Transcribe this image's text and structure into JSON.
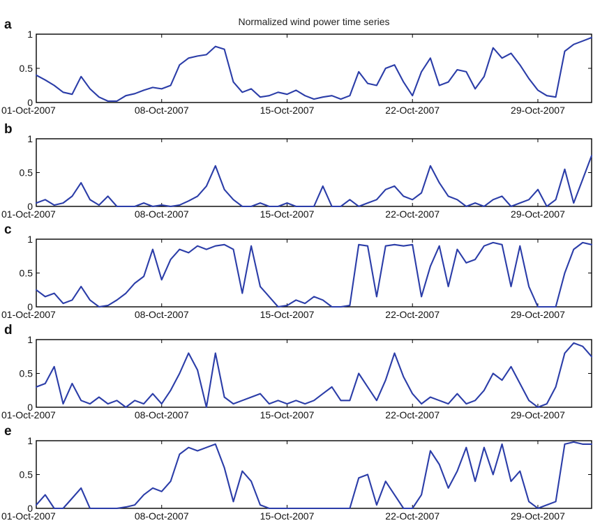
{
  "title": "Normalized wind power time series",
  "colors": {
    "line": "#2b3da8",
    "axis": "#000000"
  },
  "chart_data": [
    {
      "type": "line",
      "panel_label": "a",
      "xlim": [
        "2007-10-01",
        "2007-11-01"
      ],
      "ylim": [
        0,
        1
      ],
      "yticks": [
        0,
        0.5,
        1
      ],
      "ytick_labels": [
        "0",
        "0.5",
        "1"
      ],
      "xticks": [
        "2007-10-01",
        "2007-10-08",
        "2007-10-15",
        "2007-10-22",
        "2007-10-29"
      ],
      "xtick_labels": [
        "01-Oct-2007",
        "08-Oct-2007",
        "15-Oct-2007",
        "22-Oct-2007",
        "29-Oct-2007"
      ],
      "grid": false,
      "x": [
        "2007-10-01 00:00",
        "2007-10-01 12:00",
        "2007-10-02 00:00",
        "2007-10-02 12:00",
        "2007-10-03 00:00",
        "2007-10-03 12:00",
        "2007-10-04 00:00",
        "2007-10-04 12:00",
        "2007-10-05 00:00",
        "2007-10-05 12:00",
        "2007-10-06 00:00",
        "2007-10-06 12:00",
        "2007-10-07 00:00",
        "2007-10-07 12:00",
        "2007-10-08 00:00",
        "2007-10-08 12:00",
        "2007-10-09 00:00",
        "2007-10-09 12:00",
        "2007-10-10 00:00",
        "2007-10-10 12:00",
        "2007-10-11 00:00",
        "2007-10-11 12:00",
        "2007-10-12 00:00",
        "2007-10-12 12:00",
        "2007-10-13 00:00",
        "2007-10-13 12:00",
        "2007-10-14 00:00",
        "2007-10-14 12:00",
        "2007-10-15 00:00",
        "2007-10-15 12:00",
        "2007-10-16 00:00",
        "2007-10-16 12:00",
        "2007-10-17 00:00",
        "2007-10-17 12:00",
        "2007-10-18 00:00",
        "2007-10-18 12:00",
        "2007-10-19 00:00",
        "2007-10-19 12:00",
        "2007-10-20 00:00",
        "2007-10-20 12:00",
        "2007-10-21 00:00",
        "2007-10-21 12:00",
        "2007-10-22 00:00",
        "2007-10-22 12:00",
        "2007-10-23 00:00",
        "2007-10-23 12:00",
        "2007-10-24 00:00",
        "2007-10-24 12:00",
        "2007-10-25 00:00",
        "2007-10-25 12:00",
        "2007-10-26 00:00",
        "2007-10-26 12:00",
        "2007-10-27 00:00",
        "2007-10-27 12:00",
        "2007-10-28 00:00",
        "2007-10-28 12:00",
        "2007-10-29 00:00",
        "2007-10-29 12:00",
        "2007-10-30 00:00",
        "2007-10-30 12:00",
        "2007-10-31 00:00",
        "2007-10-31 12:00",
        "2007-11-01 00:00"
      ],
      "y": [
        0.4,
        0.33,
        0.25,
        0.15,
        0.12,
        0.38,
        0.2,
        0.08,
        0.02,
        0.02,
        0.1,
        0.13,
        0.18,
        0.22,
        0.2,
        0.25,
        0.55,
        0.65,
        0.68,
        0.7,
        0.82,
        0.78,
        0.3,
        0.15,
        0.2,
        0.08,
        0.1,
        0.15,
        0.12,
        0.18,
        0.1,
        0.05,
        0.08,
        0.1,
        0.05,
        0.1,
        0.45,
        0.28,
        0.25,
        0.5,
        0.55,
        0.3,
        0.1,
        0.45,
        0.65,
        0.25,
        0.3,
        0.48,
        0.45,
        0.2,
        0.38,
        0.8,
        0.65,
        0.72,
        0.55,
        0.35,
        0.18,
        0.1,
        0.08,
        0.75,
        0.85,
        0.9,
        0.95
      ]
    },
    {
      "type": "line",
      "panel_label": "b",
      "xlim": [
        "2007-10-01",
        "2007-11-01"
      ],
      "ylim": [
        0,
        1
      ],
      "yticks": [
        0,
        0.5,
        1
      ],
      "ytick_labels": [
        "0",
        "0.5",
        "1"
      ],
      "xticks": [
        "2007-10-01",
        "2007-10-08",
        "2007-10-15",
        "2007-10-22",
        "2007-10-29"
      ],
      "xtick_labels": [
        "01-Oct-2007",
        "08-Oct-2007",
        "15-Oct-2007",
        "22-Oct-2007",
        "29-Oct-2007"
      ],
      "grid": false,
      "x": [
        "2007-10-01 00:00",
        "2007-10-01 12:00",
        "2007-10-02 00:00",
        "2007-10-02 12:00",
        "2007-10-03 00:00",
        "2007-10-03 12:00",
        "2007-10-04 00:00",
        "2007-10-04 12:00",
        "2007-10-05 00:00",
        "2007-10-05 12:00",
        "2007-10-06 00:00",
        "2007-10-06 12:00",
        "2007-10-07 00:00",
        "2007-10-07 12:00",
        "2007-10-08 00:00",
        "2007-10-08 12:00",
        "2007-10-09 00:00",
        "2007-10-09 12:00",
        "2007-10-10 00:00",
        "2007-10-10 12:00",
        "2007-10-11 00:00",
        "2007-10-11 12:00",
        "2007-10-12 00:00",
        "2007-10-12 12:00",
        "2007-10-13 00:00",
        "2007-10-13 12:00",
        "2007-10-14 00:00",
        "2007-10-14 12:00",
        "2007-10-15 00:00",
        "2007-10-15 12:00",
        "2007-10-16 00:00",
        "2007-10-16 12:00",
        "2007-10-17 00:00",
        "2007-10-17 12:00",
        "2007-10-18 00:00",
        "2007-10-18 12:00",
        "2007-10-19 00:00",
        "2007-10-19 12:00",
        "2007-10-20 00:00",
        "2007-10-20 12:00",
        "2007-10-21 00:00",
        "2007-10-21 12:00",
        "2007-10-22 00:00",
        "2007-10-22 12:00",
        "2007-10-23 00:00",
        "2007-10-23 12:00",
        "2007-10-24 00:00",
        "2007-10-24 12:00",
        "2007-10-25 00:00",
        "2007-10-25 12:00",
        "2007-10-26 00:00",
        "2007-10-26 12:00",
        "2007-10-27 00:00",
        "2007-10-27 12:00",
        "2007-10-28 00:00",
        "2007-10-28 12:00",
        "2007-10-29 00:00",
        "2007-10-29 12:00",
        "2007-10-30 00:00",
        "2007-10-30 12:00",
        "2007-10-31 00:00",
        "2007-10-31 12:00",
        "2007-11-01 00:00"
      ],
      "y": [
        0.05,
        0.1,
        0.02,
        0.05,
        0.15,
        0.35,
        0.1,
        0.02,
        0.15,
        0.0,
        0.0,
        0.0,
        0.05,
        0.0,
        0.02,
        0.0,
        0.02,
        0.08,
        0.15,
        0.3,
        0.6,
        0.25,
        0.1,
        0.0,
        0.0,
        0.05,
        0.0,
        0.0,
        0.05,
        0.0,
        0.0,
        0.0,
        0.3,
        0.0,
        0.0,
        0.1,
        0.0,
        0.05,
        0.1,
        0.25,
        0.3,
        0.15,
        0.1,
        0.2,
        0.6,
        0.35,
        0.15,
        0.1,
        0.0,
        0.05,
        0.0,
        0.1,
        0.15,
        0.0,
        0.05,
        0.1,
        0.25,
        0.0,
        0.1,
        0.55,
        0.05,
        0.4,
        0.75
      ]
    },
    {
      "type": "line",
      "panel_label": "c",
      "xlim": [
        "2007-10-01",
        "2007-11-01"
      ],
      "ylim": [
        0,
        1
      ],
      "yticks": [
        0,
        0.5,
        1
      ],
      "ytick_labels": [
        "0",
        "0.5",
        "1"
      ],
      "xticks": [
        "2007-10-01",
        "2007-10-08",
        "2007-10-15",
        "2007-10-22",
        "2007-10-29"
      ],
      "xtick_labels": [
        "01-Oct-2007",
        "08-Oct-2007",
        "15-Oct-2007",
        "22-Oct-2007",
        "29-Oct-2007"
      ],
      "grid": false,
      "x": [
        "2007-10-01 00:00",
        "2007-10-01 12:00",
        "2007-10-02 00:00",
        "2007-10-02 12:00",
        "2007-10-03 00:00",
        "2007-10-03 12:00",
        "2007-10-04 00:00",
        "2007-10-04 12:00",
        "2007-10-05 00:00",
        "2007-10-05 12:00",
        "2007-10-06 00:00",
        "2007-10-06 12:00",
        "2007-10-07 00:00",
        "2007-10-07 12:00",
        "2007-10-08 00:00",
        "2007-10-08 12:00",
        "2007-10-09 00:00",
        "2007-10-09 12:00",
        "2007-10-10 00:00",
        "2007-10-10 12:00",
        "2007-10-11 00:00",
        "2007-10-11 12:00",
        "2007-10-12 00:00",
        "2007-10-12 12:00",
        "2007-10-13 00:00",
        "2007-10-13 12:00",
        "2007-10-14 00:00",
        "2007-10-14 12:00",
        "2007-10-15 00:00",
        "2007-10-15 12:00",
        "2007-10-16 00:00",
        "2007-10-16 12:00",
        "2007-10-17 00:00",
        "2007-10-17 12:00",
        "2007-10-18 00:00",
        "2007-10-18 12:00",
        "2007-10-19 00:00",
        "2007-10-19 12:00",
        "2007-10-20 00:00",
        "2007-10-20 12:00",
        "2007-10-21 00:00",
        "2007-10-21 12:00",
        "2007-10-22 00:00",
        "2007-10-22 12:00",
        "2007-10-23 00:00",
        "2007-10-23 12:00",
        "2007-10-24 00:00",
        "2007-10-24 12:00",
        "2007-10-25 00:00",
        "2007-10-25 12:00",
        "2007-10-26 00:00",
        "2007-10-26 12:00",
        "2007-10-27 00:00",
        "2007-10-27 12:00",
        "2007-10-28 00:00",
        "2007-10-28 12:00",
        "2007-10-29 00:00",
        "2007-10-29 12:00",
        "2007-10-30 00:00",
        "2007-10-30 12:00",
        "2007-10-31 00:00",
        "2007-10-31 12:00",
        "2007-11-01 00:00"
      ],
      "y": [
        0.25,
        0.15,
        0.2,
        0.05,
        0.1,
        0.3,
        0.1,
        0.0,
        0.02,
        0.1,
        0.2,
        0.35,
        0.45,
        0.85,
        0.4,
        0.7,
        0.85,
        0.8,
        0.9,
        0.85,
        0.9,
        0.92,
        0.85,
        0.2,
        0.9,
        0.3,
        0.15,
        0.0,
        0.02,
        0.1,
        0.05,
        0.15,
        0.1,
        0.0,
        0.0,
        0.02,
        0.92,
        0.9,
        0.15,
        0.9,
        0.92,
        0.9,
        0.92,
        0.15,
        0.6,
        0.9,
        0.3,
        0.85,
        0.65,
        0.7,
        0.9,
        0.95,
        0.92,
        0.3,
        0.9,
        0.3,
        0.0,
        0.0,
        0.0,
        0.5,
        0.85,
        0.95,
        0.92
      ]
    },
    {
      "type": "line",
      "panel_label": "d",
      "xlim": [
        "2007-10-01",
        "2007-11-01"
      ],
      "ylim": [
        0,
        1
      ],
      "yticks": [
        0,
        0.5,
        1
      ],
      "ytick_labels": [
        "0",
        "0.5",
        "1"
      ],
      "xticks": [
        "2007-10-01",
        "2007-10-08",
        "2007-10-15",
        "2007-10-22",
        "2007-10-29"
      ],
      "xtick_labels": [
        "01-Oct-2007",
        "08-Oct-2007",
        "15-Oct-2007",
        "22-Oct-2007",
        "29-Oct-2007"
      ],
      "grid": false,
      "x": [
        "2007-10-01 00:00",
        "2007-10-01 12:00",
        "2007-10-02 00:00",
        "2007-10-02 12:00",
        "2007-10-03 00:00",
        "2007-10-03 12:00",
        "2007-10-04 00:00",
        "2007-10-04 12:00",
        "2007-10-05 00:00",
        "2007-10-05 12:00",
        "2007-10-06 00:00",
        "2007-10-06 12:00",
        "2007-10-07 00:00",
        "2007-10-07 12:00",
        "2007-10-08 00:00",
        "2007-10-08 12:00",
        "2007-10-09 00:00",
        "2007-10-09 12:00",
        "2007-10-10 00:00",
        "2007-10-10 12:00",
        "2007-10-11 00:00",
        "2007-10-11 12:00",
        "2007-10-12 00:00",
        "2007-10-12 12:00",
        "2007-10-13 00:00",
        "2007-10-13 12:00",
        "2007-10-14 00:00",
        "2007-10-14 12:00",
        "2007-10-15 00:00",
        "2007-10-15 12:00",
        "2007-10-16 00:00",
        "2007-10-16 12:00",
        "2007-10-17 00:00",
        "2007-10-17 12:00",
        "2007-10-18 00:00",
        "2007-10-18 12:00",
        "2007-10-19 00:00",
        "2007-10-19 12:00",
        "2007-10-20 00:00",
        "2007-10-20 12:00",
        "2007-10-21 00:00",
        "2007-10-21 12:00",
        "2007-10-22 00:00",
        "2007-10-22 12:00",
        "2007-10-23 00:00",
        "2007-10-23 12:00",
        "2007-10-24 00:00",
        "2007-10-24 12:00",
        "2007-10-25 00:00",
        "2007-10-25 12:00",
        "2007-10-26 00:00",
        "2007-10-26 12:00",
        "2007-10-27 00:00",
        "2007-10-27 12:00",
        "2007-10-28 00:00",
        "2007-10-28 12:00",
        "2007-10-29 00:00",
        "2007-10-29 12:00",
        "2007-10-30 00:00",
        "2007-10-30 12:00",
        "2007-10-31 00:00",
        "2007-10-31 12:00",
        "2007-11-01 00:00"
      ],
      "y": [
        0.3,
        0.35,
        0.6,
        0.05,
        0.35,
        0.1,
        0.05,
        0.15,
        0.05,
        0.1,
        0.0,
        0.1,
        0.05,
        0.2,
        0.05,
        0.25,
        0.5,
        0.8,
        0.55,
        0.0,
        0.8,
        0.15,
        0.05,
        0.1,
        0.15,
        0.2,
        0.05,
        0.1,
        0.05,
        0.1,
        0.05,
        0.1,
        0.2,
        0.3,
        0.1,
        0.1,
        0.5,
        0.3,
        0.1,
        0.4,
        0.8,
        0.45,
        0.2,
        0.05,
        0.15,
        0.1,
        0.05,
        0.2,
        0.05,
        0.1,
        0.25,
        0.5,
        0.4,
        0.6,
        0.35,
        0.1,
        0.0,
        0.05,
        0.3,
        0.8,
        0.95,
        0.9,
        0.75
      ]
    },
    {
      "type": "line",
      "panel_label": "e",
      "xlim": [
        "2007-10-01",
        "2007-11-01"
      ],
      "ylim": [
        0,
        1
      ],
      "yticks": [
        0,
        0.5,
        1
      ],
      "ytick_labels": [
        "0",
        "0.5",
        "1"
      ],
      "xticks": [
        "2007-10-01",
        "2007-10-08",
        "2007-10-15",
        "2007-10-22",
        "2007-10-29"
      ],
      "xtick_labels": [
        "01-Oct-2007",
        "08-Oct-2007",
        "15-Oct-2007",
        "22-Oct-2007",
        "29-Oct-2007"
      ],
      "grid": false,
      "x": [
        "2007-10-01 00:00",
        "2007-10-01 12:00",
        "2007-10-02 00:00",
        "2007-10-02 12:00",
        "2007-10-03 00:00",
        "2007-10-03 12:00",
        "2007-10-04 00:00",
        "2007-10-04 12:00",
        "2007-10-05 00:00",
        "2007-10-05 12:00",
        "2007-10-06 00:00",
        "2007-10-06 12:00",
        "2007-10-07 00:00",
        "2007-10-07 12:00",
        "2007-10-08 00:00",
        "2007-10-08 12:00",
        "2007-10-09 00:00",
        "2007-10-09 12:00",
        "2007-10-10 00:00",
        "2007-10-10 12:00",
        "2007-10-11 00:00",
        "2007-10-11 12:00",
        "2007-10-12 00:00",
        "2007-10-12 12:00",
        "2007-10-13 00:00",
        "2007-10-13 12:00",
        "2007-10-14 00:00",
        "2007-10-14 12:00",
        "2007-10-15 00:00",
        "2007-10-15 12:00",
        "2007-10-16 00:00",
        "2007-10-16 12:00",
        "2007-10-17 00:00",
        "2007-10-17 12:00",
        "2007-10-18 00:00",
        "2007-10-18 12:00",
        "2007-10-19 00:00",
        "2007-10-19 12:00",
        "2007-10-20 00:00",
        "2007-10-20 12:00",
        "2007-10-21 00:00",
        "2007-10-21 12:00",
        "2007-10-22 00:00",
        "2007-10-22 12:00",
        "2007-10-23 00:00",
        "2007-10-23 12:00",
        "2007-10-24 00:00",
        "2007-10-24 12:00",
        "2007-10-25 00:00",
        "2007-10-25 12:00",
        "2007-10-26 00:00",
        "2007-10-26 12:00",
        "2007-10-27 00:00",
        "2007-10-27 12:00",
        "2007-10-28 00:00",
        "2007-10-28 12:00",
        "2007-10-29 00:00",
        "2007-10-29 12:00",
        "2007-10-30 00:00",
        "2007-10-30 12:00",
        "2007-10-31 00:00",
        "2007-10-31 12:00",
        "2007-11-01 00:00"
      ],
      "y": [
        0.05,
        0.2,
        0.0,
        0.0,
        0.15,
        0.3,
        0.0,
        0.0,
        0.0,
        0.0,
        0.02,
        0.05,
        0.2,
        0.3,
        0.25,
        0.4,
        0.8,
        0.9,
        0.85,
        0.9,
        0.95,
        0.6,
        0.1,
        0.55,
        0.4,
        0.05,
        0.0,
        0.0,
        0.0,
        0.0,
        0.0,
        0.0,
        0.0,
        0.0,
        0.0,
        0.0,
        0.45,
        0.5,
        0.05,
        0.4,
        0.2,
        0.0,
        0.0,
        0.2,
        0.85,
        0.65,
        0.3,
        0.55,
        0.9,
        0.4,
        0.9,
        0.5,
        0.95,
        0.4,
        0.55,
        0.1,
        0.0,
        0.05,
        0.1,
        0.95,
        0.98,
        0.95,
        0.95
      ]
    }
  ]
}
